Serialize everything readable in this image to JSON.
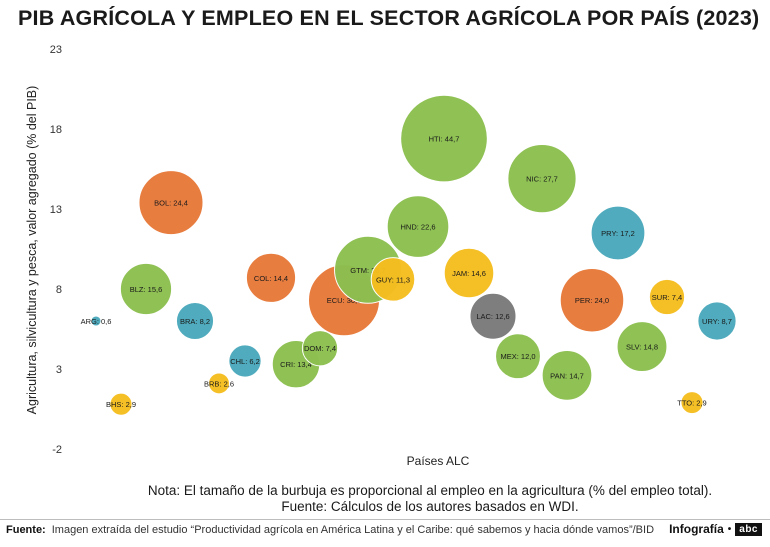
{
  "title": "PIB AGRÍCOLA Y EMPLEO EN EL SECTOR AGRÍCOLA POR PAÍS (2023)",
  "note_line1": "Nota: El tamaño de la burbuja es proporcional al empleo en la agricultura (% del empleo total).",
  "note_line2": "Fuente: Cálculos de los autores basados en WDI.",
  "footer_label": "Fuente:",
  "footer_text": "Imagen extraída del estudio “Productividad agrícola en América Latina y el Caribe: qué sabemos y hacia dónde vamos”/BID",
  "credit_text": "Infografía",
  "credit_dot": "•",
  "logo_text": "abc",
  "colors": {
    "orange": "#e8793a",
    "green": "#8cbf4f",
    "teal": "#4aa9bb",
    "yellow": "#f5bd1f",
    "gray": "#7a7a7a"
  },
  "chart_data": {
    "type": "scatter",
    "bubble": true,
    "title": "PIB AGRÍCOLA Y EMPLEO EN EL SECTOR AGRÍCOLA POR PAÍS (2023)",
    "xlabel": "Países ALC",
    "ylabel": "Agricultura, silvicultura y pesca, valor agregado (% del PIB)",
    "ylim": [
      -2,
      23
    ],
    "yticks": [
      -2,
      3,
      8,
      13,
      18,
      23
    ],
    "grid": false,
    "points": [
      {
        "label": "ARG: 0,6",
        "y": 6.0,
        "size": 0.6,
        "color": "teal"
      },
      {
        "label": "BHS: 2,9",
        "y": 0.8,
        "size": 2.9,
        "color": "yellow"
      },
      {
        "label": "BLZ: 15,6",
        "y": 8.0,
        "size": 15.6,
        "color": "green"
      },
      {
        "label": "BOL: 24,4",
        "y": 13.4,
        "size": 24.4,
        "color": "orange"
      },
      {
        "label": "BRA: 8,2",
        "y": 6.0,
        "size": 8.2,
        "color": "teal"
      },
      {
        "label": "BRB: 2,6",
        "y": 2.1,
        "size": 2.6,
        "color": "yellow"
      },
      {
        "label": "CHL: 6,2",
        "y": 3.5,
        "size": 6.2,
        "color": "teal"
      },
      {
        "label": "COL: 14,4",
        "y": 8.7,
        "size": 14.4,
        "color": "orange"
      },
      {
        "label": "CRI: 13,4",
        "y": 3.3,
        "size": 13.4,
        "color": "green"
      },
      {
        "label": "DOM: 7,4",
        "y": 4.3,
        "size": 7.4,
        "color": "green"
      },
      {
        "label": "ECU: 30,0",
        "y": 7.3,
        "size": 30.0,
        "color": "orange"
      },
      {
        "label": "GTM: 26,7",
        "y": 9.2,
        "size": 26.7,
        "color": "green"
      },
      {
        "label": "GUY: 11,3",
        "y": 8.6,
        "size": 11.3,
        "color": "yellow"
      },
      {
        "label": "HND: 22,6",
        "y": 11.9,
        "size": 22.6,
        "color": "green"
      },
      {
        "label": "HTI: 44,7",
        "y": 17.4,
        "size": 44.7,
        "color": "green"
      },
      {
        "label": "JAM: 14,6",
        "y": 9.0,
        "size": 14.6,
        "color": "yellow"
      },
      {
        "label": "LAC: 12,6",
        "y": 6.3,
        "size": 12.6,
        "color": "gray"
      },
      {
        "label": "MEX: 12,0",
        "y": 3.8,
        "size": 12.0,
        "color": "green"
      },
      {
        "label": "NIC: 27,7",
        "y": 14.9,
        "size": 27.7,
        "color": "green"
      },
      {
        "label": "PAN: 14,7",
        "y": 2.6,
        "size": 14.7,
        "color": "green"
      },
      {
        "label": "PER: 24,0",
        "y": 7.3,
        "size": 24.0,
        "color": "orange"
      },
      {
        "label": "PRY: 17,2",
        "y": 11.5,
        "size": 17.2,
        "color": "teal"
      },
      {
        "label": "SLV: 14,8",
        "y": 4.4,
        "size": 14.8,
        "color": "green"
      },
      {
        "label": "SUR: 7,4",
        "y": 7.5,
        "size": 7.4,
        "color": "yellow"
      },
      {
        "label": "TTO: 2,9",
        "y": 0.9,
        "size": 2.9,
        "color": "yellow"
      },
      {
        "label": "URY: 8,7",
        "y": 6.0,
        "size": 8.7,
        "color": "teal"
      }
    ]
  }
}
